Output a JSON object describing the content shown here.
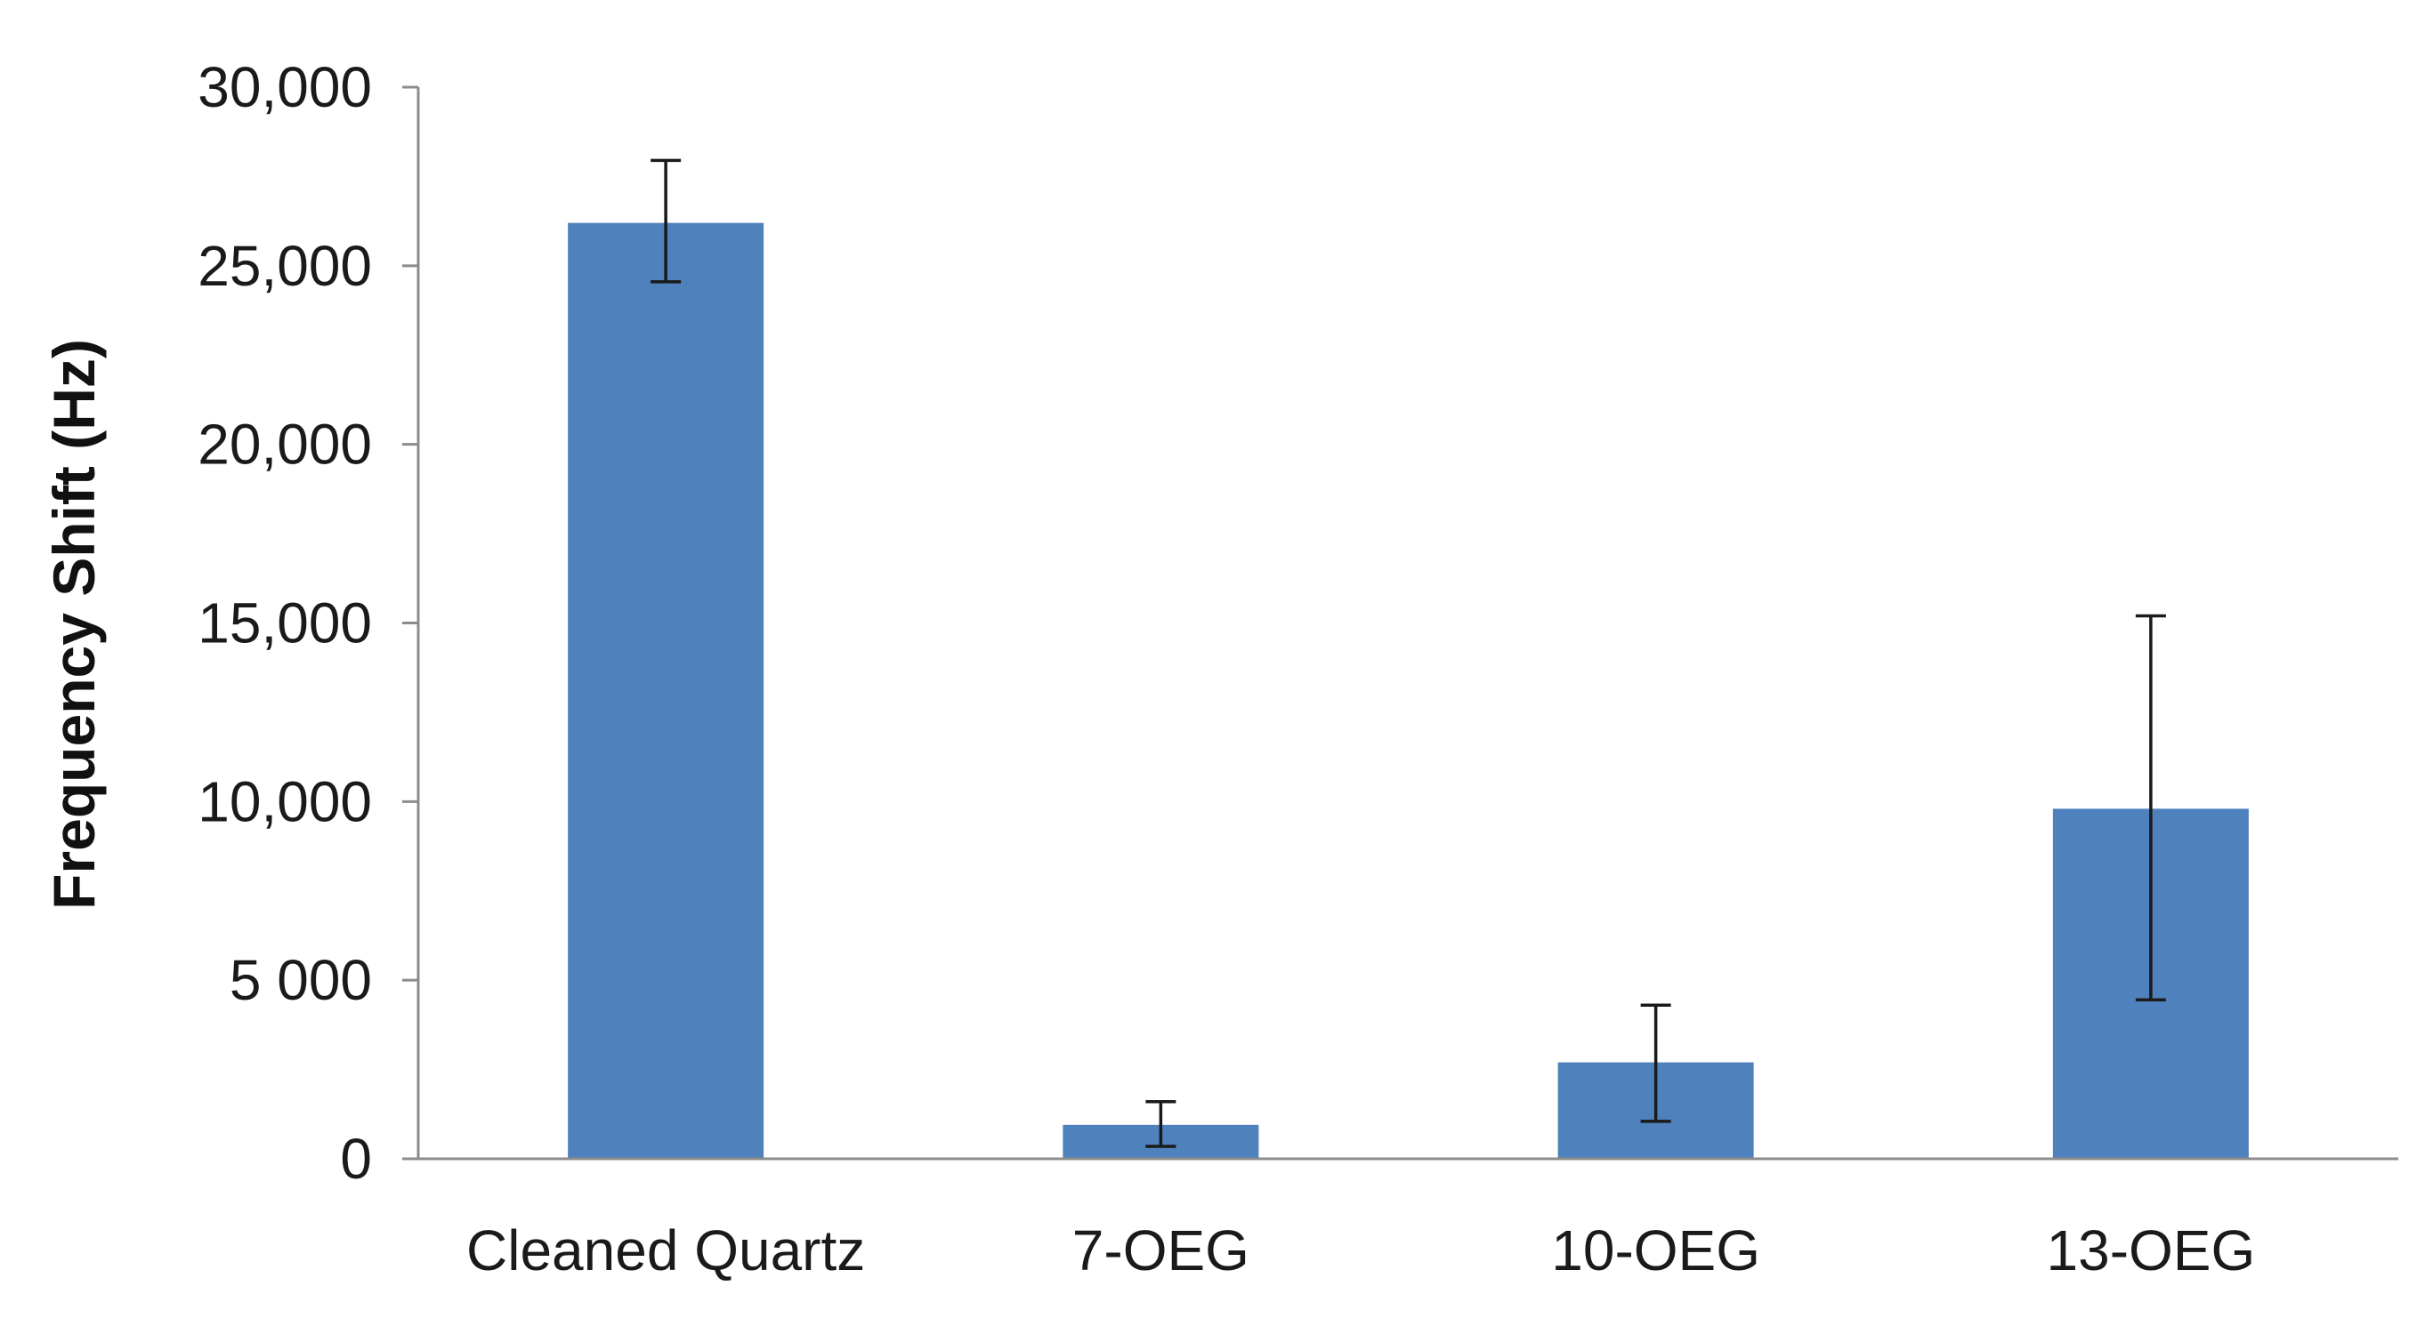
{
  "chart_data": {
    "type": "bar",
    "categories": [
      "Cleaned Quartz",
      "7-OEG",
      "10-OEG",
      "13-OEG"
    ],
    "values": [
      26200,
      950,
      2700,
      9800
    ],
    "error_upper": [
      27950,
      1600,
      4300,
      15200
    ],
    "error_lower": [
      24550,
      350,
      1050,
      4450
    ],
    "ylabel": "Frequency Shift (Hz)",
    "xlabel": "",
    "title": "",
    "ylim": [
      0,
      30000
    ],
    "y_ticks": [
      {
        "value": 0,
        "label": "0"
      },
      {
        "value": 5000,
        "label": "5 000"
      },
      {
        "value": 10000,
        "label": "10,000"
      },
      {
        "value": 15000,
        "label": "15,000"
      },
      {
        "value": 20000,
        "label": "20,000"
      },
      {
        "value": 25000,
        "label": "25,000"
      },
      {
        "value": 30000,
        "label": "30,000"
      }
    ],
    "grid": false,
    "legend": "none",
    "colors": {
      "bar": "#4f81bd",
      "axis": "#8c8c8c",
      "error_bar": "#1a1a1a"
    }
  }
}
